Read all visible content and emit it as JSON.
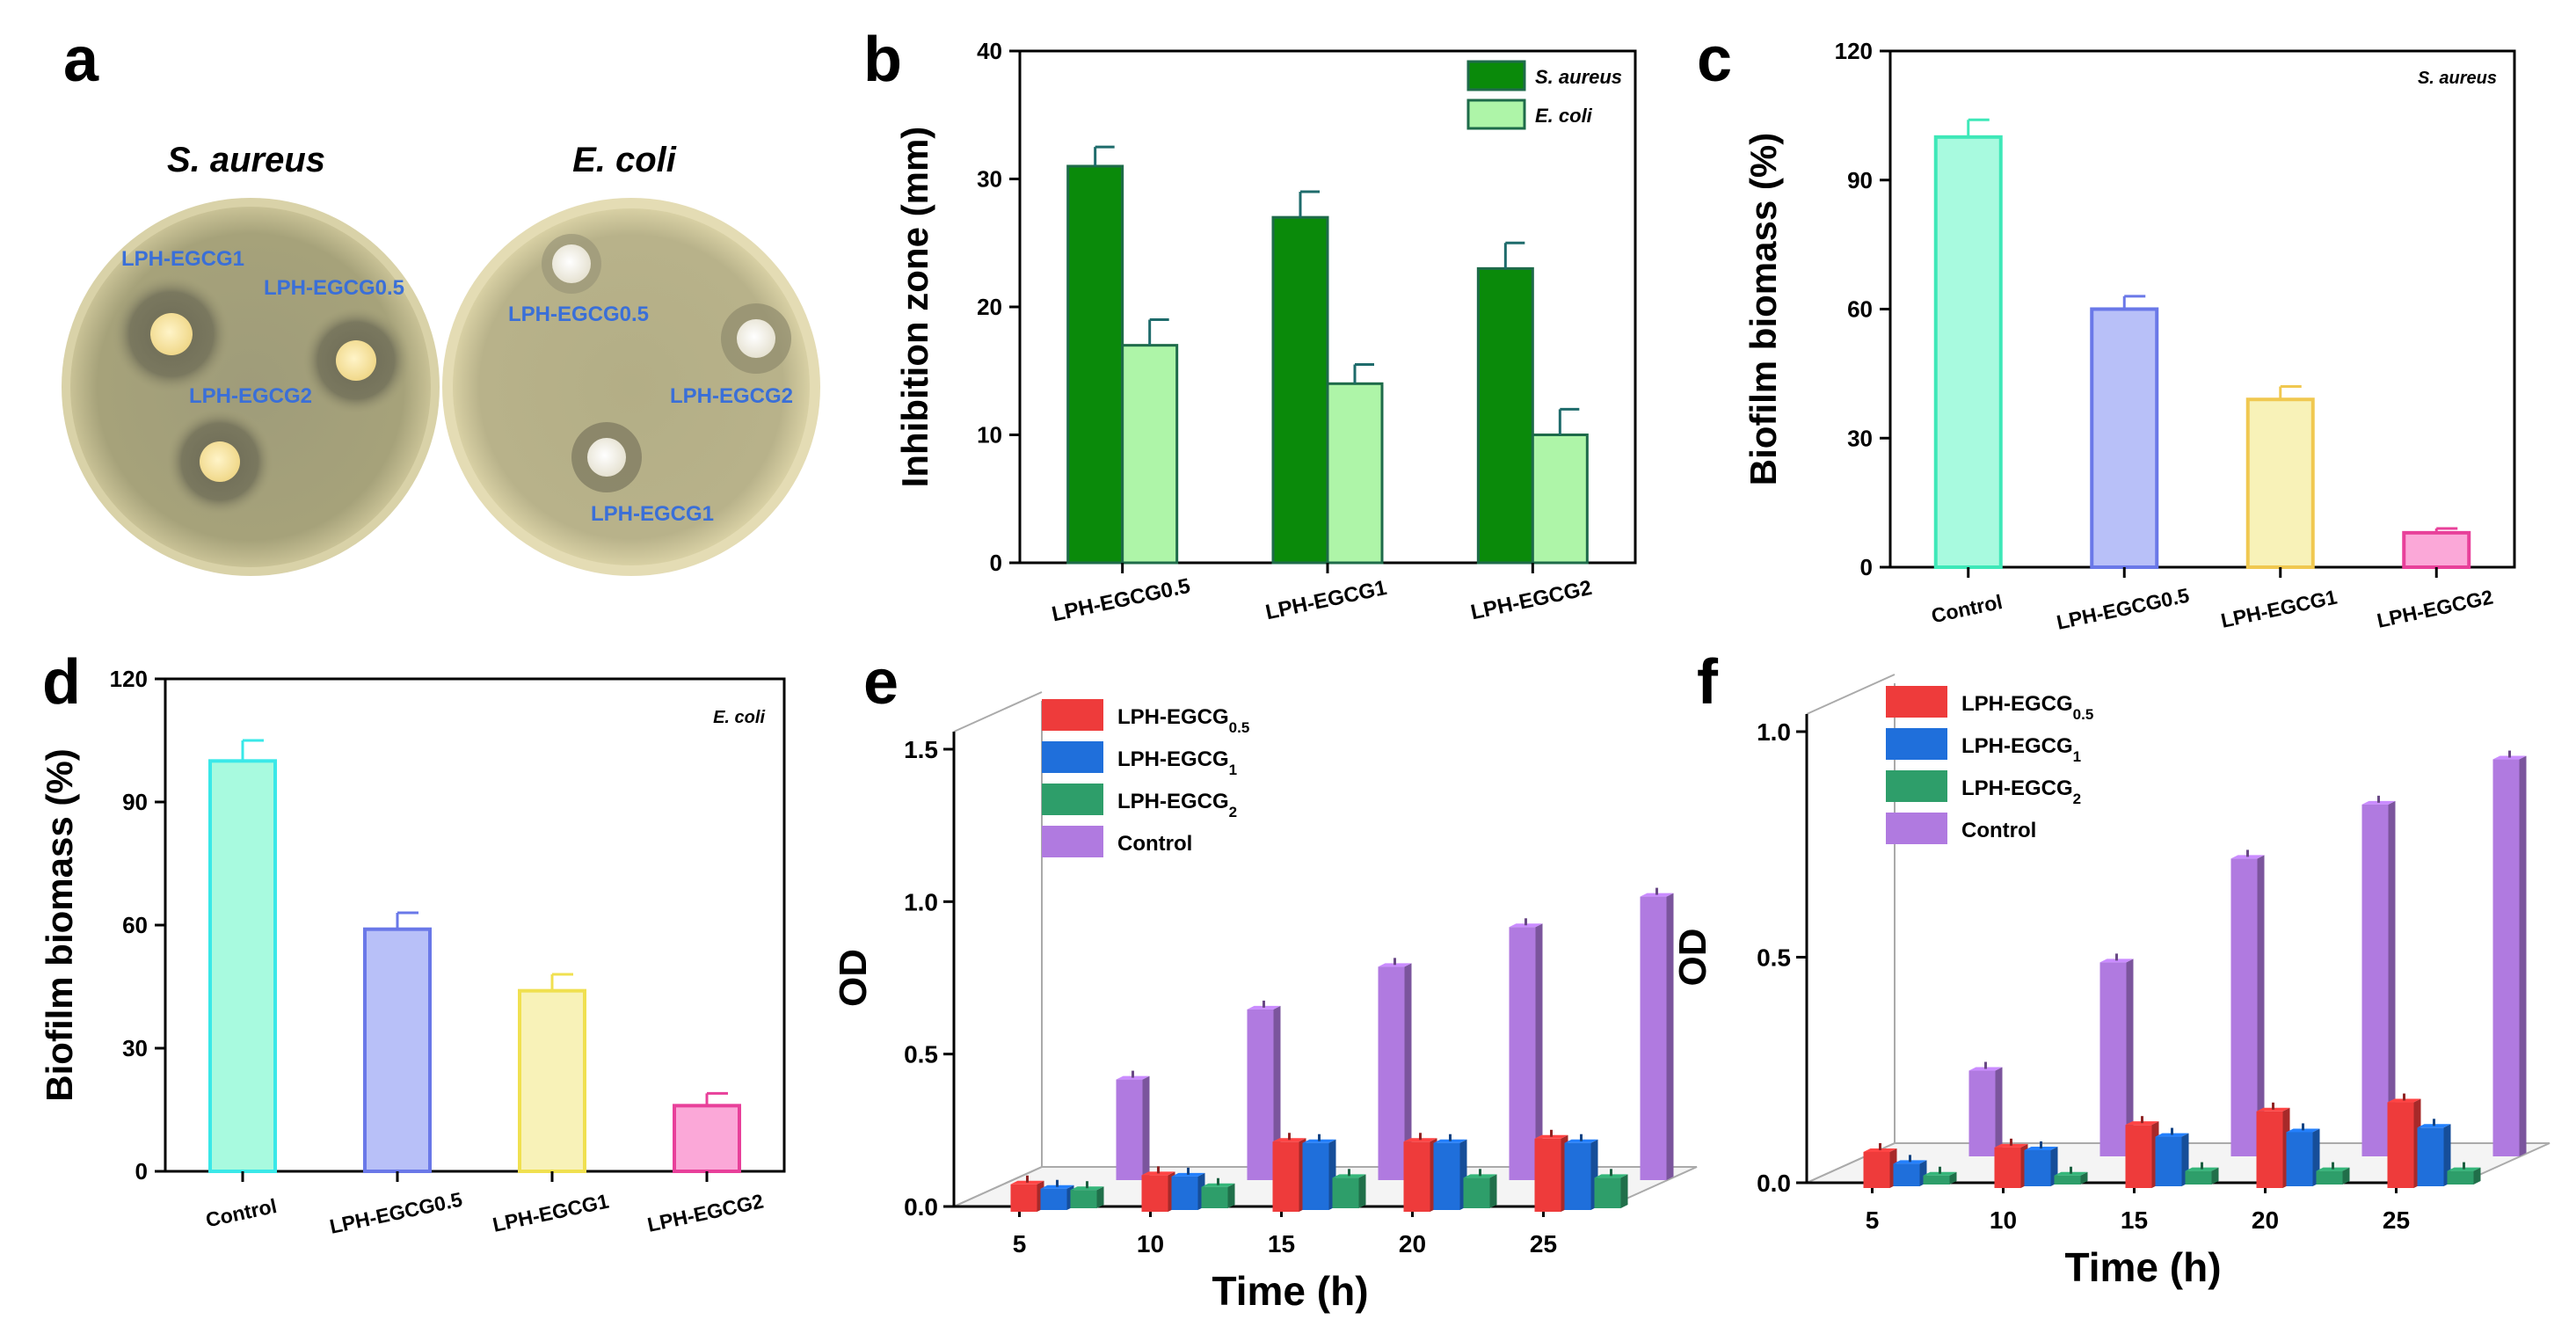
{
  "panel_labels": [
    "a",
    "b",
    "c",
    "d",
    "e",
    "f"
  ],
  "panel_a": {
    "plate_titles": [
      "S. aureus",
      "E. coli"
    ],
    "plate1_labels": [
      "LPH-EGCG1",
      "LPH-EGCG0.5",
      "LPH-EGCG2"
    ],
    "plate2_labels": [
      "LPH-EGCG0.5",
      "LPH-EGCG2",
      "LPH-EGCG1"
    ],
    "colors": {
      "label": "#3a6fd8",
      "agar": "#a8a47a",
      "rim": "#dcd6b0"
    }
  },
  "chart_data": [
    {
      "panel": "b",
      "type": "bar",
      "title": "",
      "xlabel": "",
      "ylabel": "Inhibition zone (mm)",
      "ylim": [
        0,
        40
      ],
      "yticks": [
        0,
        10,
        20,
        30,
        40
      ],
      "categories": [
        "LPH-EGCG0.5",
        "LPH-EGCG1",
        "LPH-EGCG2"
      ],
      "series": [
        {
          "name": "S. aureus",
          "values": [
            31,
            27,
            23
          ],
          "errors": [
            1.5,
            2,
            2
          ],
          "color": "#0a8a0a"
        },
        {
          "name": "E. coli",
          "values": [
            17,
            14,
            10
          ],
          "errors": [
            2,
            1.5,
            2
          ],
          "color": "#aef5a8"
        }
      ],
      "legend": "top-right"
    },
    {
      "panel": "c",
      "type": "bar",
      "annotation": "S. aureus",
      "xlabel": "",
      "ylabel": "Biofilm biomass (%)",
      "ylim": [
        0,
        120
      ],
      "yticks": [
        0,
        30,
        60,
        90,
        120
      ],
      "categories": [
        "Control",
        "LPH-EGCG0.5",
        "LPH-EGCG1",
        "LPH-EGCG2"
      ],
      "values": [
        100,
        60,
        39,
        8
      ],
      "errors": [
        4,
        3,
        3,
        1
      ],
      "fills": [
        "#a8fadf",
        "#b8c0f8",
        "#f8f2b8",
        "#fba8d8"
      ],
      "strokes": [
        "#3ee8b8",
        "#6a78e8",
        "#f0c850",
        "#e8409a"
      ]
    },
    {
      "panel": "d",
      "type": "bar",
      "annotation": "E. coli",
      "xlabel": "",
      "ylabel": "Biofilm biomass (%)",
      "ylim": [
        0,
        120
      ],
      "yticks": [
        0,
        30,
        60,
        90,
        120
      ],
      "categories": [
        "Control",
        "LPH-EGCG0.5",
        "LPH-EGCG1",
        "LPH-EGCG2"
      ],
      "values": [
        100,
        59,
        44,
        16
      ],
      "errors": [
        5,
        4,
        4,
        3
      ],
      "fills": [
        "#a8fadf",
        "#b8c0f8",
        "#f8f2b8",
        "#fba8d8"
      ],
      "strokes": [
        "#3ae8e8",
        "#6a78e8",
        "#f0e050",
        "#e8409a"
      ]
    },
    {
      "panel": "e",
      "type": "bar",
      "xlabel": "Time (h)",
      "ylabel": "OD",
      "ylim": [
        0,
        1.5
      ],
      "yticks": [
        "0.0",
        "0.5",
        "1.0",
        "1.5"
      ],
      "categories": [
        "5",
        "10",
        "15",
        "20",
        "25"
      ],
      "series": [
        {
          "name": "LPH-EGCG",
          "sub": "0.5",
          "values": [
            0.09,
            0.12,
            0.23,
            0.23,
            0.24
          ],
          "color": "#ee3b3b"
        },
        {
          "name": "LPH-EGCG",
          "sub": "1",
          "values": [
            0.07,
            0.11,
            0.22,
            0.22,
            0.22
          ],
          "color": "#1f6fdb"
        },
        {
          "name": "LPH-EGCG",
          "sub": "2",
          "values": [
            0.06,
            0.07,
            0.1,
            0.1,
            0.1
          ],
          "color": "#2e9e6a"
        },
        {
          "name": "Control",
          "sub": "",
          "values": [
            0.33,
            0.56,
            0.7,
            0.83,
            0.93
          ],
          "color": "#b07ae0"
        }
      ],
      "legend": "top-left"
    },
    {
      "panel": "f",
      "type": "bar",
      "xlabel": "Time (h)",
      "ylabel": "OD",
      "ylim": [
        0,
        1.0
      ],
      "yticks": [
        "0.0",
        "0.5",
        "1.0"
      ],
      "categories": [
        "5",
        "10",
        "15",
        "20",
        "25"
      ],
      "series": [
        {
          "name": "LPH-EGCG",
          "sub": "0.5",
          "values": [
            0.08,
            0.09,
            0.14,
            0.17,
            0.19
          ],
          "color": "#ee3b3b"
        },
        {
          "name": "LPH-EGCG",
          "sub": "1",
          "values": [
            0.05,
            0.08,
            0.11,
            0.12,
            0.13
          ],
          "color": "#1f6fdb"
        },
        {
          "name": "LPH-EGCG",
          "sub": "2",
          "values": [
            0.02,
            0.02,
            0.03,
            0.03,
            0.03
          ],
          "color": "#2e9e6a"
        },
        {
          "name": "Control",
          "sub": "",
          "values": [
            0.19,
            0.43,
            0.66,
            0.78,
            0.88
          ],
          "color": "#b07ae0"
        }
      ],
      "legend": "top-left"
    }
  ]
}
